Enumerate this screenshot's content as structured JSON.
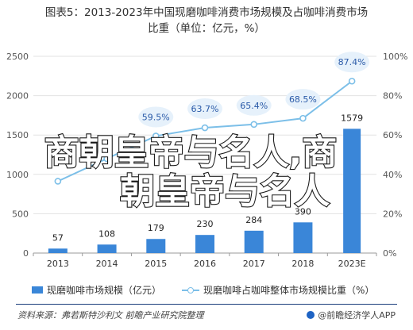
{
  "title": {
    "line1": "图表5：2013-2023年中国现磨咖啡消费市场规模及占咖啡消费市场",
    "line2": "比重（单位：亿元，%）"
  },
  "watermark": {
    "line1": "商朝皇帝与名人,商",
    "line2": "朝皇帝与名人"
  },
  "chart_data": {
    "type": "bar",
    "categories": [
      "2013",
      "2014",
      "2015",
      "2016",
      "2017",
      "2018",
      "2023E"
    ],
    "series": [
      {
        "name": "现磨咖啡市场规模（亿元）",
        "type": "bar",
        "axis": "left",
        "values": [
          57,
          108,
          179,
          230,
          284,
          390,
          1579
        ],
        "labels": [
          "57",
          "108",
          "179",
          "230",
          "284",
          "390",
          "1579"
        ]
      },
      {
        "name": "现磨咖啡占咖啡整体市场规模比重（%）",
        "type": "line",
        "axis": "right",
        "values": [
          36.5,
          48.0,
          59.5,
          63.7,
          65.4,
          68.5,
          87.4
        ],
        "labels": [
          "",
          "",
          "59.5%",
          "63.7%",
          "65.4%",
          "68.5%",
          "87.4%"
        ]
      }
    ],
    "left_axis": {
      "ylim": [
        0,
        2500
      ],
      "ticks": [
        "0",
        "500",
        "1000",
        "1500",
        "2000",
        "2500"
      ]
    },
    "right_axis": {
      "ylim": [
        0,
        100
      ],
      "ticks": [
        "0%",
        "20%",
        "40%",
        "60%",
        "80%",
        "100%"
      ]
    },
    "legend_position": "bottom-left",
    "colors": {
      "bar": "#3a86d8",
      "line": "#7cbfe8",
      "bubble": "#e6f1fb"
    }
  },
  "legend": {
    "bar_label": "现磨咖啡市场规模（亿元）",
    "line_label": "现磨咖啡占咖啡整体市场规模比重（%）"
  },
  "footer": {
    "source": "资料来源：弗若斯特沙利文 前瞻产业研究院整理",
    "brand": "@前瞻经济学人APP"
  }
}
